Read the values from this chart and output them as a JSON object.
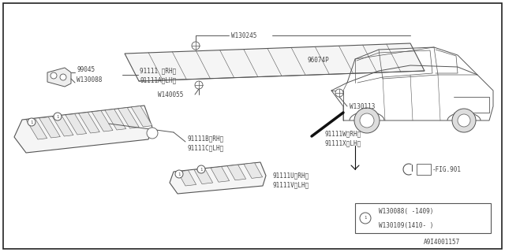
{
  "bg_color": "#ffffff",
  "line_color": "#555555",
  "text_color": "#444444",
  "diagram_id": "A9I4001157",
  "legend_text1": "W130088( -1409)",
  "legend_text2": "W130109(1410- )"
}
